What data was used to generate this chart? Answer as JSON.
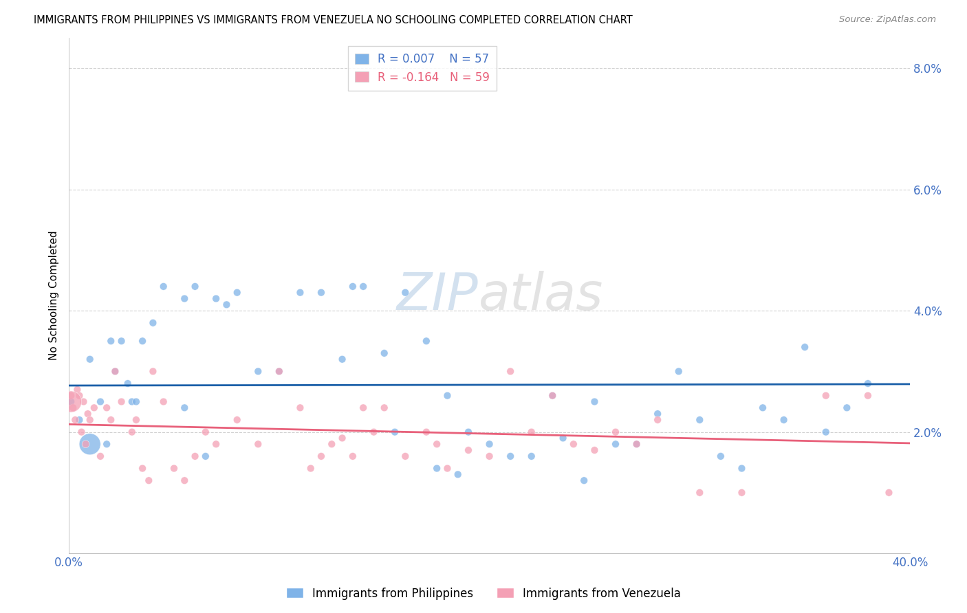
{
  "title": "IMMIGRANTS FROM PHILIPPINES VS IMMIGRANTS FROM VENEZUELA NO SCHOOLING COMPLETED CORRELATION CHART",
  "source": "Source: ZipAtlas.com",
  "ylabel": "No Schooling Completed",
  "xlim": [
    0.0,
    0.4
  ],
  "ylim": [
    0.0,
    0.085
  ],
  "xticks": [
    0.0,
    0.1,
    0.2,
    0.3,
    0.4
  ],
  "yticks": [
    0.0,
    0.02,
    0.04,
    0.06,
    0.08
  ],
  "ytick_labels": [
    "",
    "2.0%",
    "4.0%",
    "6.0%",
    "8.0%"
  ],
  "xtick_labels": [
    "0.0%",
    "",
    "",
    "",
    "40.0%"
  ],
  "legend_r1": "0.007",
  "legend_n1": "57",
  "legend_r2": "-0.164",
  "legend_n2": "59",
  "color_phil": "#7fb3e8",
  "color_venz": "#f4a0b5",
  "color_line_phil": "#1a5fa8",
  "color_line_venz": "#e8607a",
  "background_color": "#ffffff",
  "phil_x": [
    0.001,
    0.02,
    0.025,
    0.03,
    0.005,
    0.01,
    0.015,
    0.01,
    0.022,
    0.018,
    0.028,
    0.032,
    0.035,
    0.04,
    0.045,
    0.055,
    0.06,
    0.07,
    0.075,
    0.08,
    0.09,
    0.1,
    0.11,
    0.12,
    0.13,
    0.135,
    0.14,
    0.15,
    0.16,
    0.17,
    0.18,
    0.19,
    0.2,
    0.21,
    0.22,
    0.23,
    0.235,
    0.25,
    0.26,
    0.27,
    0.28,
    0.29,
    0.3,
    0.31,
    0.32,
    0.33,
    0.34,
    0.35,
    0.36,
    0.37,
    0.38,
    0.155,
    0.065,
    0.175,
    0.245,
    0.185,
    0.055
  ],
  "phil_y": [
    0.025,
    0.035,
    0.035,
    0.025,
    0.022,
    0.032,
    0.025,
    0.018,
    0.03,
    0.018,
    0.028,
    0.025,
    0.035,
    0.038,
    0.044,
    0.042,
    0.044,
    0.042,
    0.041,
    0.043,
    0.03,
    0.03,
    0.043,
    0.043,
    0.032,
    0.044,
    0.044,
    0.033,
    0.043,
    0.035,
    0.026,
    0.02,
    0.018,
    0.016,
    0.016,
    0.026,
    0.019,
    0.025,
    0.018,
    0.018,
    0.023,
    0.03,
    0.022,
    0.016,
    0.014,
    0.024,
    0.022,
    0.034,
    0.02,
    0.024,
    0.028,
    0.02,
    0.016,
    0.014,
    0.012,
    0.013,
    0.024
  ],
  "phil_sizes": [
    60,
    60,
    60,
    60,
    60,
    60,
    60,
    500,
    60,
    60,
    60,
    60,
    60,
    60,
    60,
    60,
    60,
    60,
    60,
    60,
    60,
    60,
    60,
    60,
    60,
    60,
    60,
    60,
    60,
    60,
    60,
    60,
    60,
    60,
    60,
    60,
    60,
    60,
    60,
    60,
    60,
    60,
    60,
    60,
    60,
    60,
    60,
    60,
    60,
    60,
    60,
    60,
    60,
    60,
    60,
    60,
    60
  ],
  "venz_x": [
    0.001,
    0.002,
    0.003,
    0.004,
    0.005,
    0.006,
    0.007,
    0.008,
    0.009,
    0.01,
    0.012,
    0.015,
    0.018,
    0.02,
    0.022,
    0.025,
    0.03,
    0.032,
    0.035,
    0.038,
    0.04,
    0.045,
    0.05,
    0.055,
    0.06,
    0.065,
    0.07,
    0.08,
    0.09,
    0.1,
    0.11,
    0.115,
    0.12,
    0.125,
    0.13,
    0.135,
    0.14,
    0.145,
    0.15,
    0.16,
    0.17,
    0.175,
    0.18,
    0.19,
    0.2,
    0.21,
    0.22,
    0.23,
    0.24,
    0.25,
    0.26,
    0.27,
    0.28,
    0.3,
    0.32,
    0.36,
    0.38,
    0.39,
    0.001
  ],
  "venz_y": [
    0.026,
    0.024,
    0.022,
    0.027,
    0.026,
    0.02,
    0.025,
    0.018,
    0.023,
    0.022,
    0.024,
    0.016,
    0.024,
    0.022,
    0.03,
    0.025,
    0.02,
    0.022,
    0.014,
    0.012,
    0.03,
    0.025,
    0.014,
    0.012,
    0.016,
    0.02,
    0.018,
    0.022,
    0.018,
    0.03,
    0.024,
    0.014,
    0.016,
    0.018,
    0.019,
    0.016,
    0.024,
    0.02,
    0.024,
    0.016,
    0.02,
    0.018,
    0.014,
    0.017,
    0.016,
    0.03,
    0.02,
    0.026,
    0.018,
    0.017,
    0.02,
    0.018,
    0.022,
    0.01,
    0.01,
    0.026,
    0.026,
    0.01,
    0.025
  ],
  "venz_sizes": [
    60,
    60,
    60,
    60,
    60,
    60,
    60,
    60,
    60,
    60,
    60,
    60,
    60,
    60,
    60,
    60,
    60,
    60,
    60,
    60,
    60,
    60,
    60,
    60,
    60,
    60,
    60,
    60,
    60,
    60,
    60,
    60,
    60,
    60,
    60,
    60,
    60,
    60,
    60,
    60,
    60,
    60,
    60,
    60,
    60,
    60,
    60,
    60,
    60,
    60,
    60,
    60,
    60,
    60,
    60,
    60,
    60,
    60,
    500
  ]
}
